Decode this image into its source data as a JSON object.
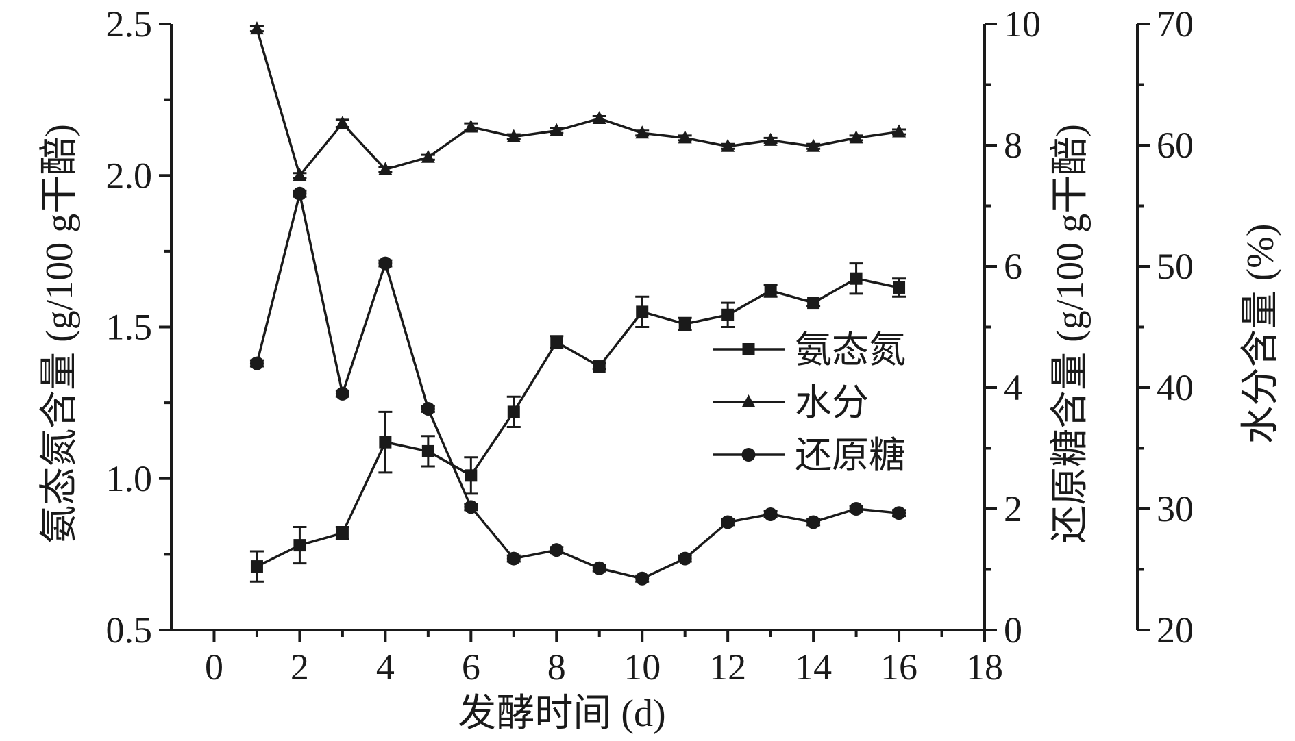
{
  "chart_data": {
    "type": "line",
    "x_axis": {
      "label": "发酵时间 (d)",
      "range": [
        -1,
        18
      ],
      "ticks": [
        0,
        2,
        4,
        6,
        8,
        10,
        12,
        14,
        16,
        18
      ]
    },
    "y_axes": [
      {
        "id": "left",
        "label": "氨态氮含量 (g/100 g干醅)",
        "range": [
          0.5,
          2.5
        ],
        "ticks": [
          "0.5",
          "1.0",
          "1.5",
          "2.0",
          "2.5"
        ]
      },
      {
        "id": "right1",
        "label": "还原糖含量 (g/100 g干醅)",
        "range": [
          0,
          10
        ],
        "ticks": [
          "0",
          "2",
          "4",
          "6",
          "8",
          "10"
        ]
      },
      {
        "id": "right2",
        "label": "水分含量 (%)",
        "range": [
          20,
          70
        ],
        "ticks": [
          "20",
          "30",
          "40",
          "50",
          "60",
          "70"
        ]
      }
    ],
    "x": [
      1,
      2,
      3,
      4,
      5,
      6,
      7,
      8,
      9,
      10,
      11,
      12,
      13,
      14,
      15,
      16
    ],
    "series": [
      {
        "name": "氨态氮",
        "axis": "left",
        "marker": "square",
        "values": [
          0.71,
          0.78,
          0.82,
          1.12,
          1.09,
          1.01,
          1.22,
          1.45,
          1.37,
          1.55,
          1.51,
          1.54,
          1.62,
          1.58,
          1.66,
          1.63
        ],
        "error": [
          0.05,
          0.06,
          0.02,
          0.1,
          0.05,
          0.06,
          0.05,
          0.02,
          0.01,
          0.05,
          0.02,
          0.04,
          0.02,
          0.01,
          0.05,
          0.03
        ]
      },
      {
        "name": "水分",
        "axis": "right2",
        "marker": "triangle",
        "values": [
          69.6,
          57.5,
          61.8,
          58.0,
          59.0,
          61.5,
          60.7,
          61.2,
          62.2,
          61.0,
          60.6,
          59.9,
          60.4,
          59.9,
          60.6,
          61.1
        ],
        "error": [
          0.2,
          0.2,
          0.3,
          0.2,
          0.2,
          0.3,
          0.2,
          0.2,
          0.2,
          0.2,
          0.2,
          0.2,
          0.2,
          0.2,
          0.2,
          0.2
        ]
      },
      {
        "name": "还原糖",
        "axis": "right1",
        "marker": "circle",
        "values": [
          4.4,
          7.2,
          3.9,
          6.05,
          3.65,
          2.03,
          1.18,
          1.32,
          1.02,
          0.85,
          1.18,
          1.78,
          1.91,
          1.78,
          2.0,
          1.93
        ],
        "error": [
          0.05,
          0.05,
          0.05,
          0.05,
          0.05,
          0.05,
          0.05,
          0.05,
          0.05,
          0.05,
          0.05,
          0.05,
          0.05,
          0.05,
          0.05,
          0.05
        ]
      }
    ],
    "legend": {
      "position": "center-right",
      "entries": [
        "氨态氮",
        "水分",
        "还原糖"
      ]
    },
    "grid": false,
    "colors": {
      "line": "#1a1a1a",
      "background": "#ffffff"
    }
  }
}
